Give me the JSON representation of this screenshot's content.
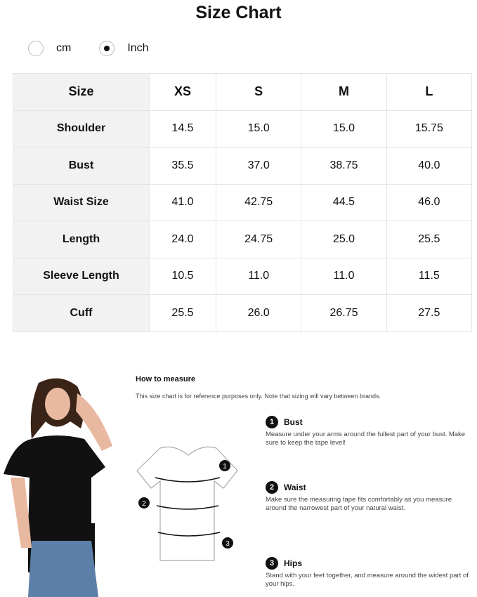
{
  "title": "Size Chart",
  "units": [
    {
      "label": "cm",
      "selected": false
    },
    {
      "label": "Inch",
      "selected": true
    }
  ],
  "table": {
    "header": [
      "Size",
      "XS",
      "S",
      "M",
      "L"
    ],
    "rows": [
      [
        "Shoulder",
        "14.5",
        "15.0",
        "15.0",
        "15.75"
      ],
      [
        "Bust",
        "35.5",
        "37.0",
        "38.75",
        "40.0"
      ],
      [
        "Waist Size",
        "41.0",
        "42.75",
        "44.5",
        "46.0"
      ],
      [
        "Length",
        "24.0",
        "24.75",
        "25.0",
        "25.5"
      ],
      [
        "Sleeve Length",
        "10.5",
        "11.0",
        "11.0",
        "11.5"
      ],
      [
        "Cuff",
        "25.5",
        "26.0",
        "26.75",
        "27.5"
      ]
    ]
  },
  "how_to": {
    "title": "How to measure",
    "note": "This size chart is for reference purposes only. Note that sizing will vary between brands.",
    "steps": [
      {
        "num": "1",
        "title": "Bust",
        "text": "Measure under your arms around the fullest part of your bust. Make sure to keep the tape level!"
      },
      {
        "num": "2",
        "title": "Waist",
        "text": "Make sure the measuring tape fits comfortably as you measure around the narrowest part of your natural waist."
      },
      {
        "num": "3",
        "title": "Hips",
        "text": "Stand with your feet together, and measure around the widest part of your hips."
      }
    ]
  }
}
